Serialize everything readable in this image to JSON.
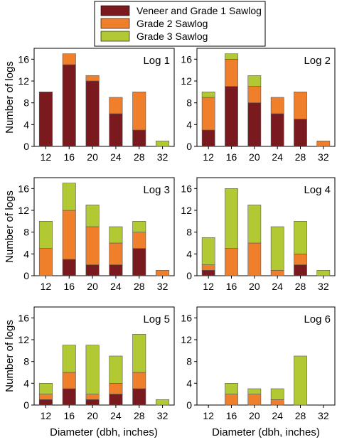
{
  "legend": {
    "entries": [
      {
        "label": "Veneer and Grade 1 Sawlog",
        "color": "#7a1a1f"
      },
      {
        "label": "Grade 2 Sawlog",
        "color": "#f07f2c"
      },
      {
        "label": "Grade 3 Sawlog",
        "color": "#b2c934"
      }
    ]
  },
  "axes": {
    "ylabel": "Number of logs",
    "xlabel": "Diameter (dbh, inches)"
  },
  "chart_data": [
    {
      "type": "bar",
      "stacked": true,
      "title": "Log 1",
      "categories": [
        "12",
        "16",
        "20",
        "24",
        "28",
        "32"
      ],
      "ylim": [
        0,
        18
      ],
      "yticks": [
        "0",
        "4",
        "8",
        "12",
        "16"
      ],
      "series": [
        {
          "name": "Veneer and Grade 1 Sawlog",
          "values": [
            10,
            15,
            12,
            6,
            3,
            0
          ]
        },
        {
          "name": "Grade 2 Sawlog",
          "values": [
            0,
            2,
            1,
            3,
            7,
            0
          ]
        },
        {
          "name": "Grade 3 Sawlog",
          "values": [
            0,
            0,
            0,
            0,
            0,
            1
          ]
        }
      ]
    },
    {
      "type": "bar",
      "stacked": true,
      "title": "Log 2",
      "categories": [
        "12",
        "16",
        "20",
        "24",
        "28",
        "32"
      ],
      "ylim": [
        0,
        18
      ],
      "yticks": [
        "0",
        "4",
        "8",
        "12",
        "16"
      ],
      "series": [
        {
          "name": "Veneer and Grade 1 Sawlog",
          "values": [
            3,
            11,
            8,
            6,
            5,
            0
          ]
        },
        {
          "name": "Grade 2 Sawlog",
          "values": [
            6,
            5,
            3,
            3,
            5,
            1
          ]
        },
        {
          "name": "Grade 3 Sawlog",
          "values": [
            1,
            1,
            2,
            0,
            0,
            0
          ]
        }
      ]
    },
    {
      "type": "bar",
      "stacked": true,
      "title": "Log 3",
      "categories": [
        "12",
        "16",
        "20",
        "24",
        "28",
        "32"
      ],
      "ylim": [
        0,
        18
      ],
      "yticks": [
        "0",
        "4",
        "8",
        "12",
        "16"
      ],
      "series": [
        {
          "name": "Veneer and Grade 1 Sawlog",
          "values": [
            0,
            3,
            2,
            2,
            5,
            0
          ]
        },
        {
          "name": "Grade 2 Sawlog",
          "values": [
            5,
            9,
            7,
            4,
            3,
            1
          ]
        },
        {
          "name": "Grade 3 Sawlog",
          "values": [
            5,
            5,
            4,
            3,
            2,
            0
          ]
        }
      ]
    },
    {
      "type": "bar",
      "stacked": true,
      "title": "Log 4",
      "categories": [
        "12",
        "16",
        "20",
        "24",
        "28",
        "32"
      ],
      "ylim": [
        0,
        18
      ],
      "yticks": [
        "0",
        "4",
        "8",
        "12",
        "16"
      ],
      "series": [
        {
          "name": "Veneer and Grade 1 Sawlog",
          "values": [
            1,
            0,
            0,
            0,
            2,
            0
          ]
        },
        {
          "name": "Grade 2 Sawlog",
          "values": [
            1,
            5,
            6,
            1,
            2,
            0
          ]
        },
        {
          "name": "Grade 3 Sawlog",
          "values": [
            5,
            11,
            7,
            8,
            6,
            1
          ]
        }
      ]
    },
    {
      "type": "bar",
      "stacked": true,
      "title": "Log 5",
      "categories": [
        "12",
        "16",
        "20",
        "24",
        "28",
        "32"
      ],
      "ylim": [
        0,
        18
      ],
      "yticks": [
        "0",
        "4",
        "8",
        "12",
        "16"
      ],
      "series": [
        {
          "name": "Veneer and Grade 1 Sawlog",
          "values": [
            1,
            3,
            1,
            2,
            3,
            0
          ]
        },
        {
          "name": "Grade 2 Sawlog",
          "values": [
            1,
            3,
            1,
            2,
            3,
            0
          ]
        },
        {
          "name": "Grade 3 Sawlog",
          "values": [
            2,
            5,
            9,
            5,
            7,
            1
          ]
        }
      ]
    },
    {
      "type": "bar",
      "stacked": true,
      "title": "Log 6",
      "categories": [
        "12",
        "16",
        "20",
        "24",
        "28",
        "32"
      ],
      "ylim": [
        0,
        18
      ],
      "yticks": [
        "0",
        "4",
        "8",
        "12",
        "16"
      ],
      "series": [
        {
          "name": "Veneer and Grade 1 Sawlog",
          "values": [
            0,
            0,
            0,
            0,
            0,
            0
          ]
        },
        {
          "name": "Grade 2 Sawlog",
          "values": [
            0,
            2,
            2,
            1,
            0,
            0
          ]
        },
        {
          "name": "Grade 3 Sawlog",
          "values": [
            0,
            2,
            1,
            2,
            9,
            0
          ]
        }
      ]
    }
  ]
}
